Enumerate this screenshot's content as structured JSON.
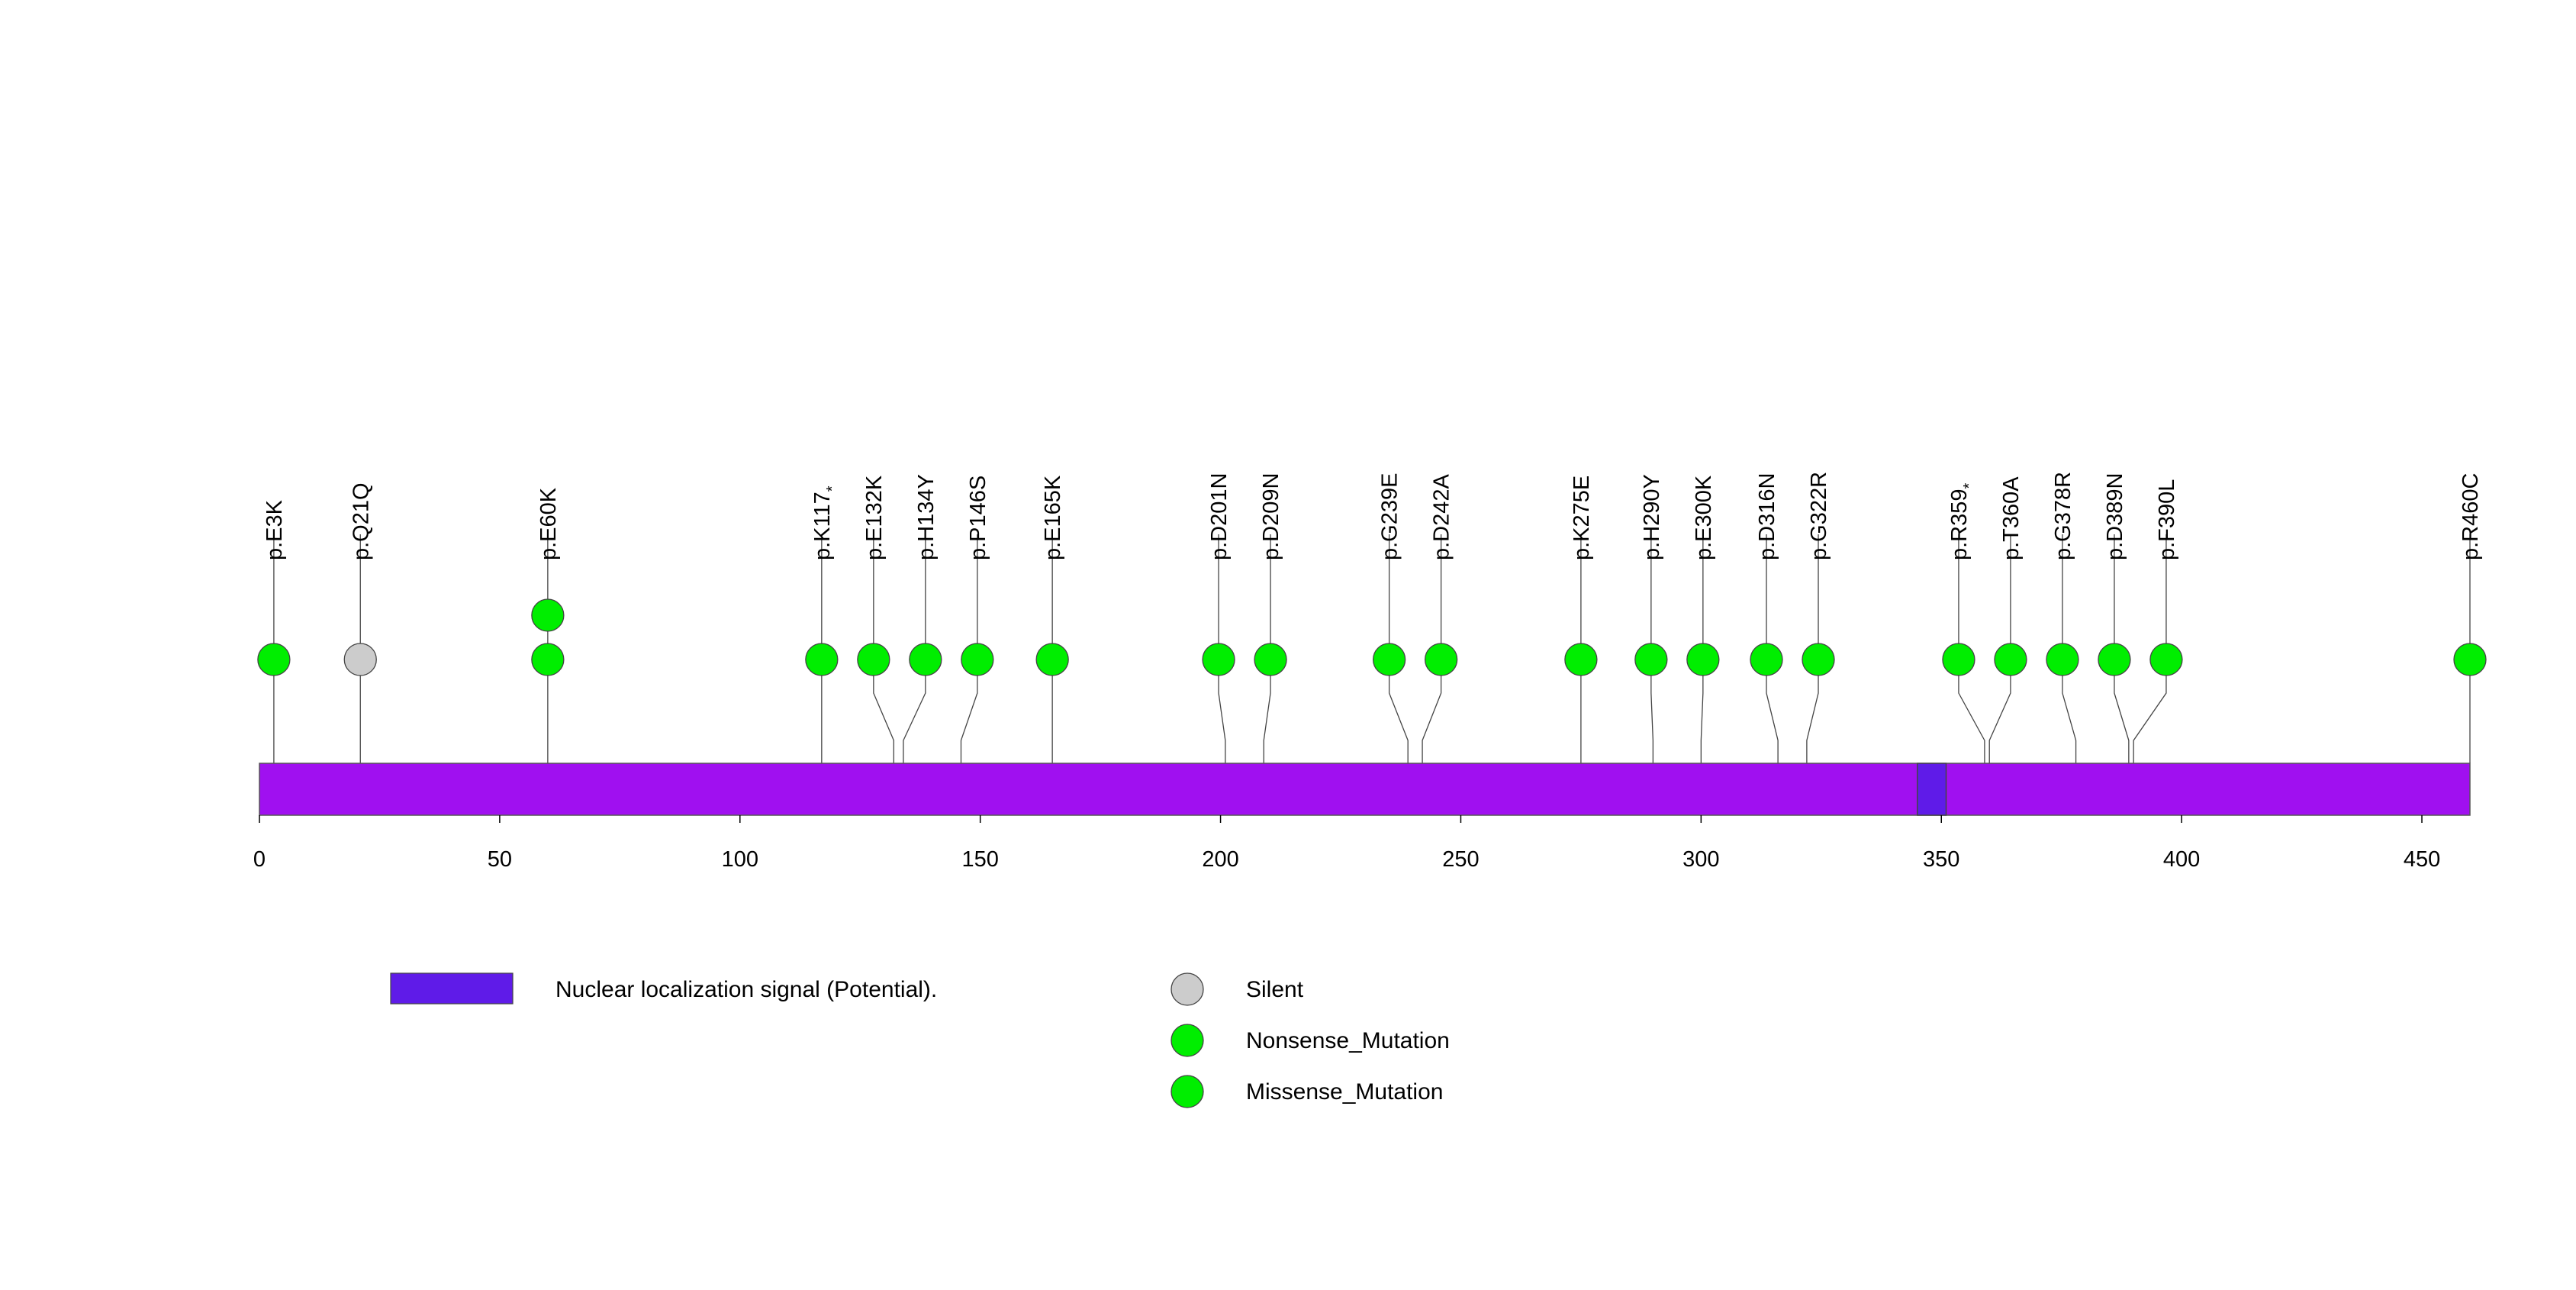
{
  "chart_data": {
    "type": "lollipop",
    "protein_length": 460,
    "axis": {
      "min": 0,
      "max": 460,
      "ticks": [
        0,
        50,
        100,
        150,
        200,
        250,
        300,
        350,
        400,
        450
      ],
      "tick_labels": [
        "0",
        "50",
        "100",
        "150",
        "200",
        "250",
        "300",
        "350",
        "400",
        "450"
      ]
    },
    "domains": [
      {
        "name": "Nuclear localization signal (Potential).",
        "start": 345,
        "end": 351,
        "color": "#5F1BE8"
      }
    ],
    "backbone_color": "#A010F0",
    "mutations": [
      {
        "label": "p.E3K",
        "pos": 3,
        "type": "Missense_Mutation",
        "count": 1
      },
      {
        "label": "p.Q21Q",
        "pos": 21,
        "type": "Silent",
        "count": 1
      },
      {
        "label": "p.E60K",
        "pos": 60,
        "type": "Missense_Mutation",
        "count": 2
      },
      {
        "label": "p.K117",
        "star": true,
        "pos": 117,
        "type": "Nonsense_Mutation",
        "count": 1
      },
      {
        "label": "p.E132K",
        "pos": 132,
        "type": "Missense_Mutation",
        "count": 1
      },
      {
        "label": "p.H134Y",
        "pos": 134,
        "type": "Missense_Mutation",
        "count": 1
      },
      {
        "label": "p.P146S",
        "pos": 146,
        "type": "Missense_Mutation",
        "count": 1
      },
      {
        "label": "p.E165K",
        "pos": 165,
        "type": "Missense_Mutation",
        "count": 1
      },
      {
        "label": "p.D201N",
        "pos": 201,
        "type": "Missense_Mutation",
        "count": 1
      },
      {
        "label": "p.D209N",
        "pos": 209,
        "type": "Missense_Mutation",
        "count": 1
      },
      {
        "label": "p.G239E",
        "pos": 239,
        "type": "Missense_Mutation",
        "count": 1
      },
      {
        "label": "p.D242A",
        "pos": 242,
        "type": "Missense_Mutation",
        "count": 1
      },
      {
        "label": "p.K275E",
        "pos": 275,
        "type": "Missense_Mutation",
        "count": 1
      },
      {
        "label": "p.H290Y",
        "pos": 290,
        "type": "Missense_Mutation",
        "count": 1
      },
      {
        "label": "p.E300K",
        "pos": 300,
        "type": "Missense_Mutation",
        "count": 1
      },
      {
        "label": "p.D316N",
        "pos": 316,
        "type": "Missense_Mutation",
        "count": 1
      },
      {
        "label": "p.G322R",
        "pos": 322,
        "type": "Missense_Mutation",
        "count": 1
      },
      {
        "label": "p.R359",
        "star": true,
        "pos": 359,
        "type": "Nonsense_Mutation",
        "count": 1
      },
      {
        "label": "p.T360A",
        "pos": 360,
        "type": "Missense_Mutation",
        "count": 1
      },
      {
        "label": "p.G378R",
        "pos": 378,
        "type": "Missense_Mutation",
        "count": 1
      },
      {
        "label": "p.D389N",
        "pos": 389,
        "type": "Missense_Mutation",
        "count": 1
      },
      {
        "label": "p.F390L",
        "pos": 390,
        "type": "Missense_Mutation",
        "count": 1
      },
      {
        "label": "p.R460C",
        "pos": 460,
        "type": "Missense_Mutation",
        "count": 1
      }
    ],
    "legend": {
      "domains": [
        {
          "label": "Nuclear localization signal (Potential).",
          "color": "#5F1BE8"
        }
      ],
      "mutation_types": [
        {
          "label": "Silent",
          "color": "#CCCCCC"
        },
        {
          "label": "Nonsense_Mutation",
          "color": "#00EE00"
        },
        {
          "label": "Missense_Mutation",
          "color": "#00EE00"
        }
      ]
    }
  }
}
